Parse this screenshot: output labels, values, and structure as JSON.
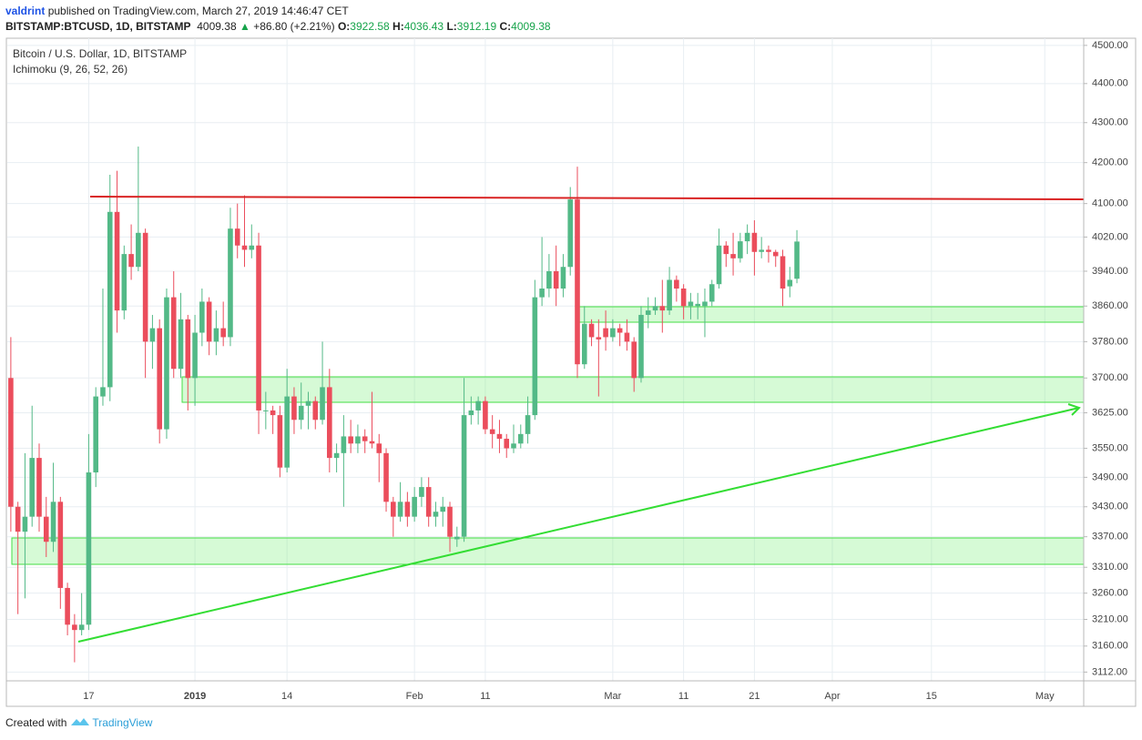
{
  "header": {
    "author": "valdrint",
    "published": "published on TradingView.com, March 27, 2019 14:46:47 CET",
    "symbol": "BITSTAMP:BTCUSD, 1D, BITSTAMP",
    "last": "4009.38",
    "change": "+86.80 (+2.21%)",
    "ohlc": [
      [
        "O:",
        "3922.58"
      ],
      [
        "H:",
        "4036.43"
      ],
      [
        "L:",
        "3912.19"
      ],
      [
        "C:",
        "4009.38"
      ]
    ]
  },
  "chart_data": {
    "type": "candlestick",
    "indicator": "Ichimoku (9, 26, 52, 26)",
    "log_scale": true,
    "grid": true,
    "ylim": [
      3096,
      4519
    ],
    "yticks": [
      {
        "value": 4500,
        "label": "4500.00"
      },
      {
        "value": 4400,
        "label": "4400.00"
      },
      {
        "value": 4300,
        "label": "4300.00"
      },
      {
        "value": 4200,
        "label": "4200.00"
      },
      {
        "value": 4100,
        "label": "4100.00"
      },
      {
        "value": 4020,
        "label": "4020.00"
      },
      {
        "value": 3940,
        "label": "3940.00"
      },
      {
        "value": 3860,
        "label": "3860.00"
      },
      {
        "value": 3780,
        "label": "3780.00"
      },
      {
        "value": 3700,
        "label": "3700.00"
      },
      {
        "value": 3625,
        "label": "3625.00"
      },
      {
        "value": 3550,
        "label": "3550.00"
      },
      {
        "value": 3490,
        "label": "3490.00"
      },
      {
        "value": 3430,
        "label": "3430.00"
      },
      {
        "value": 3370,
        "label": "3370.00"
      },
      {
        "value": 3310,
        "label": "3310.00"
      },
      {
        "value": 3260,
        "label": "3260.00"
      },
      {
        "value": 3210,
        "label": "3210.00"
      },
      {
        "value": 3160,
        "label": "3160.00"
      },
      {
        "value": 3112,
        "label": "3112.00"
      }
    ],
    "categories": [
      null,
      null,
      null,
      null,
      null,
      null,
      null,
      null,
      null,
      null,
      null,
      "17",
      null,
      null,
      null,
      null,
      null,
      null,
      null,
      null,
      null,
      null,
      null,
      null,
      null,
      null,
      "2019",
      null,
      null,
      null,
      null,
      null,
      null,
      null,
      null,
      null,
      null,
      null,
      null,
      "14",
      null,
      null,
      null,
      null,
      null,
      null,
      null,
      null,
      null,
      null,
      null,
      null,
      null,
      null,
      null,
      null,
      null,
      "Feb",
      null,
      null,
      null,
      null,
      null,
      null,
      null,
      null,
      null,
      "11",
      null,
      null,
      null,
      null,
      null,
      null,
      null,
      null,
      null,
      null,
      null,
      null,
      null,
      null,
      null,
      null,
      null,
      "Mar",
      null,
      null,
      null,
      null,
      null,
      null,
      null,
      null,
      null,
      "11",
      null,
      null,
      null,
      null,
      null,
      null,
      null,
      null,
      null,
      "21",
      null,
      null,
      null,
      null,
      null,
      null,
      null,
      null,
      null,
      null,
      "Apr",
      null,
      null,
      null,
      null,
      null,
      null,
      null,
      null,
      null,
      null,
      null,
      null,
      null,
      "15",
      null,
      null,
      null,
      null,
      null,
      null,
      null,
      null,
      null,
      null,
      null,
      null,
      null,
      null,
      null,
      "May",
      null,
      null,
      null,
      null,
      null
    ],
    "series": [
      {
        "name": "Bitcoin / U.S. Dollar, 1D, BITSTAMP",
        "up_color": "#53b987",
        "down_color": "#eb4d5c",
        "open": [
          3700,
          3430,
          3380,
          3410,
          3530,
          3410,
          3360,
          3440,
          3270,
          3200,
          3190,
          3200,
          3500,
          3660,
          3680,
          4080,
          3850,
          3980,
          3950,
          4030,
          3780,
          3810,
          3590,
          3880,
          3720,
          3830,
          3700,
          3800,
          3870,
          3780,
          3810,
          3790,
          4040,
          4000,
          3990,
          4000,
          3630,
          3630,
          3620,
          3510,
          3660,
          3610,
          3640,
          3650,
          3610,
          3680,
          3530,
          3540,
          3575,
          3560,
          3575,
          3565,
          3560,
          3540,
          3440,
          3410,
          3440,
          3410,
          3450,
          3470,
          3410,
          3420,
          3430,
          3365,
          3370,
          3620,
          3630,
          3650,
          3590,
          3580,
          3570,
          3550,
          3560,
          3580,
          3620,
          3880,
          3900,
          3940,
          3900,
          3950,
          4110,
          3730,
          3820,
          3790,
          3810,
          3790,
          3810,
          3800,
          3780,
          3700,
          3840,
          3850,
          3860,
          3850,
          3920,
          3900,
          3860,
          3860,
          3860,
          3870,
          3910,
          4000,
          3980,
          3970,
          4010,
          4030,
          3985,
          3990,
          3985,
          3975,
          3905,
          3922.58,
          null,
          null,
          null,
          null,
          null,
          null,
          null,
          null,
          null,
          null,
          null,
          null,
          null,
          null,
          null,
          null,
          null,
          null,
          null,
          null,
          null,
          null,
          null,
          null,
          null,
          null,
          null,
          null,
          null,
          null,
          null,
          null,
          null,
          null,
          null,
          null,
          null,
          null,
          null,
          null
        ],
        "high": [
          3790,
          3440,
          3540,
          3640,
          3560,
          3450,
          3520,
          3450,
          3280,
          3220,
          3260,
          3580,
          3680,
          3900,
          4170,
          4180,
          4000,
          4050,
          4240,
          4040,
          3840,
          3830,
          3900,
          3940,
          3890,
          3840,
          3840,
          3900,
          3880,
          3850,
          3870,
          4090,
          4100,
          4120,
          4050,
          4030,
          3670,
          3640,
          3640,
          3720,
          3680,
          3690,
          3670,
          3660,
          3780,
          3720,
          3560,
          3620,
          3610,
          3600,
          3590,
          3670,
          3580,
          3550,
          3450,
          3480,
          3460,
          3470,
          3490,
          3490,
          3440,
          3450,
          3440,
          3390,
          3700,
          3660,
          3660,
          3660,
          3620,
          3610,
          3580,
          3600,
          3600,
          3660,
          3920,
          4020,
          3980,
          4000,
          3980,
          4140,
          4190,
          3860,
          3830,
          3830,
          3850,
          3830,
          3820,
          3830,
          3790,
          3860,
          3880,
          3880,
          3920,
          3950,
          3930,
          3910,
          3890,
          3890,
          3900,
          3920,
          4040,
          4010,
          4030,
          4030,
          4050,
          4060,
          4020,
          4000,
          3990,
          3990,
          3950,
          4036.43,
          null,
          null,
          null,
          null,
          null,
          null,
          null,
          null,
          null,
          null,
          null,
          null,
          null,
          null,
          null,
          null,
          null,
          null,
          null,
          null,
          null,
          null,
          null,
          null,
          null,
          null,
          null,
          null,
          null,
          null,
          null,
          null,
          null,
          null,
          null,
          null,
          null,
          null,
          null,
          null
        ],
        "low": [
          3380,
          3220,
          3250,
          3390,
          3380,
          3330,
          3340,
          3230,
          3180,
          3130,
          3180,
          3190,
          3470,
          3640,
          3650,
          3800,
          3830,
          3920,
          3940,
          3700,
          3720,
          3560,
          3570,
          3700,
          3700,
          3630,
          3640,
          3770,
          3750,
          3750,
          3770,
          3770,
          3970,
          3950,
          3970,
          3580,
          3590,
          3580,
          3490,
          3500,
          3580,
          3590,
          3590,
          3590,
          3600,
          3500,
          3500,
          3430,
          3540,
          3540,
          3540,
          3550,
          3480,
          3420,
          3370,
          3400,
          3390,
          3400,
          3430,
          3390,
          3390,
          3390,
          3340,
          3350,
          3360,
          3600,
          3600,
          3580,
          3550,
          3540,
          3530,
          3540,
          3550,
          3560,
          3610,
          3860,
          3880,
          3860,
          3880,
          3930,
          3700,
          3720,
          3770,
          3660,
          3760,
          3780,
          3770,
          3760,
          3670,
          3690,
          3810,
          3840,
          3800,
          3840,
          3870,
          3830,
          3830,
          3830,
          3790,
          3860,
          3900,
          3950,
          3930,
          3960,
          3980,
          3930,
          3970,
          3960,
          3950,
          3860,
          3880,
          3912.19,
          null,
          null,
          null,
          null,
          null,
          null,
          null,
          null,
          null,
          null,
          null,
          null,
          null,
          null,
          null,
          null,
          null,
          null,
          null,
          null,
          null,
          null,
          null,
          null,
          null,
          null,
          null,
          null,
          null,
          null,
          null,
          null,
          null,
          null,
          null,
          null,
          null,
          null,
          null,
          null
        ],
        "close": [
          3430,
          3380,
          3410,
          3530,
          3410,
          3360,
          3440,
          3270,
          3200,
          3190,
          3200,
          3500,
          3660,
          3680,
          4080,
          3850,
          3980,
          3950,
          4030,
          3780,
          3810,
          3590,
          3880,
          3720,
          3830,
          3700,
          3800,
          3870,
          3780,
          3810,
          3790,
          4040,
          4000,
          3990,
          4000,
          3630,
          3630,
          3620,
          3510,
          3660,
          3610,
          3640,
          3650,
          3610,
          3680,
          3530,
          3540,
          3575,
          3560,
          3575,
          3565,
          3560,
          3540,
          3440,
          3410,
          3440,
          3410,
          3450,
          3470,
          3410,
          3420,
          3430,
          3370,
          3370,
          3620,
          3630,
          3650,
          3590,
          3580,
          3570,
          3550,
          3560,
          3580,
          3620,
          3880,
          3900,
          3940,
          3900,
          3950,
          4110,
          3730,
          3820,
          3790,
          3785,
          3790,
          3810,
          3800,
          3780,
          3700,
          3840,
          3850,
          3860,
          3850,
          3920,
          3900,
          3860,
          3870,
          3865,
          3870,
          3910,
          4000,
          3980,
          3970,
          4010,
          4030,
          3985,
          3990,
          3985,
          3975,
          3900,
          3920,
          4009.38,
          null,
          null,
          null,
          null,
          null,
          null,
          null,
          null,
          null,
          null,
          null,
          null,
          null,
          null,
          null,
          null,
          null,
          null,
          null,
          null,
          null,
          null,
          null,
          null,
          null,
          null,
          null,
          null,
          null,
          null,
          null,
          null,
          null,
          null,
          null,
          null,
          null,
          null,
          null,
          null
        ]
      }
    ]
  },
  "footer": {
    "created": "Created with",
    "brand": "TradingView"
  }
}
